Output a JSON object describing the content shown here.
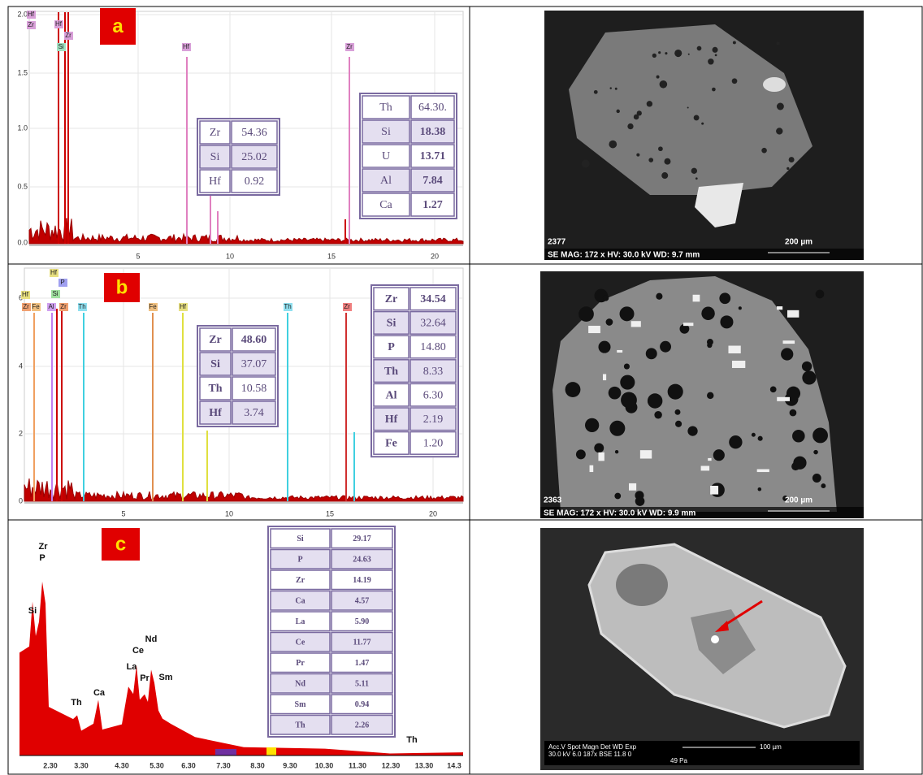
{
  "panels": [
    {
      "label": "a",
      "x_ticks": [
        "5",
        "10",
        "15",
        "20"
      ],
      "y_ticks": [
        "2.0",
        "1.5",
        "1.0",
        "0.5",
        "0.0"
      ],
      "peak_labels": [
        "Hf",
        "Zr",
        "Hf",
        "Zr",
        "Si",
        "Hf",
        "Zr"
      ],
      "tables": [
        [
          [
            "Zr",
            "54.36"
          ],
          [
            "Si",
            "25.02"
          ],
          [
            "Hf",
            "0.92"
          ]
        ],
        [
          [
            "Th",
            "64.30."
          ],
          [
            "Si",
            "18.38"
          ],
          [
            "U",
            "13.71"
          ],
          [
            "Al",
            "7.84"
          ],
          [
            "Ca",
            "1.27"
          ]
        ]
      ],
      "image": {
        "id": "2377",
        "info": "SE  MAG: 172 x  HV: 30.0 kV  WD: 9.7 mm",
        "scale": "200 µm"
      }
    },
    {
      "label": "b",
      "x_ticks": [
        "5",
        "10",
        "15",
        "20"
      ],
      "y_ticks": [
        "6",
        "4",
        "2",
        "0"
      ],
      "peak_labels": [
        "Hf",
        "P",
        "Hf",
        "Si",
        "Zr",
        "Fe",
        "Al",
        "Zr",
        "Th",
        "Fe",
        "Hf",
        "Th",
        "Zr"
      ],
      "tables": [
        [
          [
            "Zr",
            "48.60"
          ],
          [
            "Si",
            "37.07"
          ],
          [
            "Th",
            "10.58"
          ],
          [
            "Hf",
            "3.74"
          ]
        ],
        [
          [
            "Zr",
            "34.54"
          ],
          [
            "Si",
            "32.64"
          ],
          [
            "P",
            "14.80"
          ],
          [
            "Th",
            "8.33"
          ],
          [
            "Al",
            "6.30"
          ],
          [
            "Hf",
            "2.19"
          ],
          [
            "Fe",
            "1.20"
          ]
        ]
      ],
      "image": {
        "id": "2363",
        "info": "SE  MAG: 172 x  HV: 30.0 kV  WD: 9.9 mm",
        "scale": "200 µm"
      }
    },
    {
      "label": "c",
      "x_ticks": [
        "2.30",
        "3.30",
        "4.30",
        "5.30",
        "6.30",
        "7.30",
        "8.30",
        "9.30",
        "10.30",
        "11.30",
        "12.30",
        "13.30",
        "14.3"
      ],
      "peak_labels": [
        "Zr",
        "P",
        "Si",
        "Th",
        "Ca",
        "La",
        "Ce",
        "Nd",
        "Pr",
        "Sm",
        "Th"
      ],
      "tables": [
        [
          [
            "Si",
            "29.17"
          ],
          [
            "P",
            "24.63"
          ],
          [
            "Zr",
            "14.19"
          ],
          [
            "Ca",
            "4.57"
          ],
          [
            "La",
            "5.90"
          ],
          [
            "Ce",
            "11.77"
          ],
          [
            "Pr",
            "1.47"
          ],
          [
            "Nd",
            "5.11"
          ],
          [
            "Sm",
            "0.94"
          ],
          [
            "Th",
            "2.26"
          ]
        ]
      ],
      "image": {
        "header": "Acc.V  Spot Magn   Det  WD  Exp",
        "info": "30.0 kV 6.0   187x    BSE 11.8  0",
        "pressure": "49 Pa",
        "scale": "100 µm"
      }
    }
  ]
}
